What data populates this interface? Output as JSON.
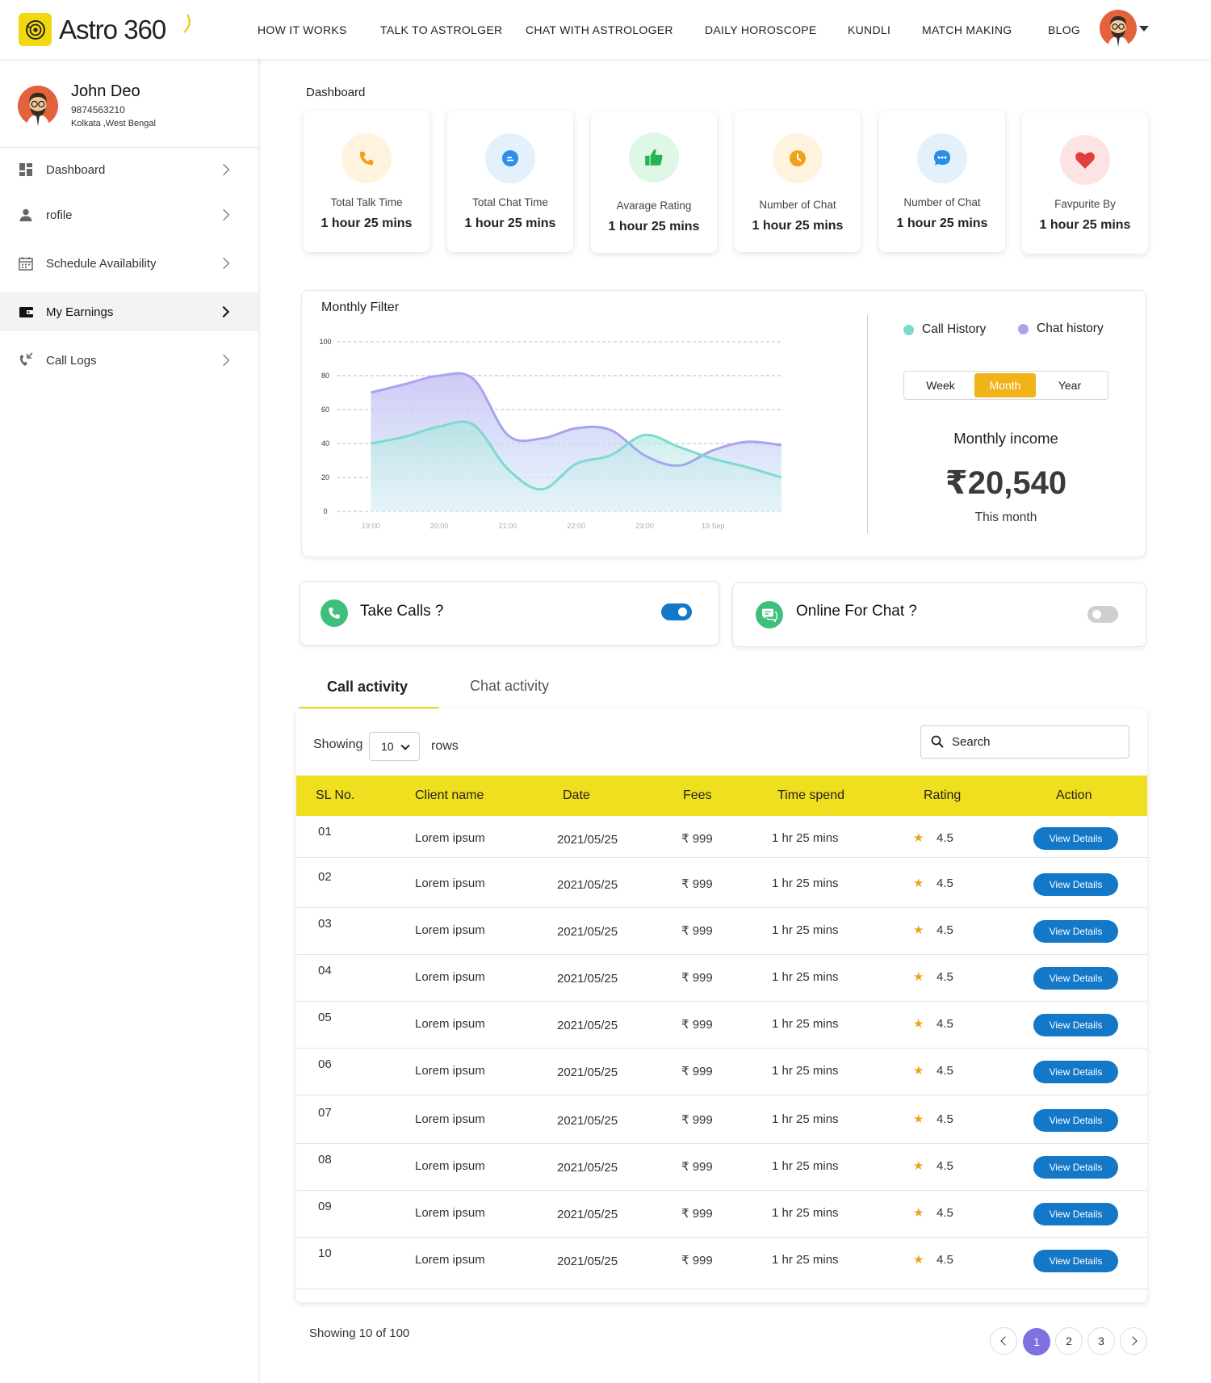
{
  "brand": {
    "name": "Astro 360",
    "accent": "#f2d80f"
  },
  "nav": [
    "HOW IT WORKS",
    "TALK TO ASTROLGER",
    "CHAT WITH ASTROLOGER",
    "DAILY HOROSCOPE",
    "KUNDLI",
    "MATCH MAKING",
    "BLOG"
  ],
  "profile": {
    "name": "John Deo",
    "phone": "9874563210",
    "location": "Kolkata ,West Bengal"
  },
  "sidebar": {
    "items": [
      {
        "label": "Dashboard",
        "icon": "dashboard-icon"
      },
      {
        "label": "rofile",
        "icon": "user-icon"
      },
      {
        "label": "Schedule Availability",
        "icon": "calendar-icon"
      },
      {
        "label": "My Earnings",
        "icon": "wallet-icon",
        "active": true
      },
      {
        "label": "Call Logs",
        "icon": "call-logs-icon"
      }
    ]
  },
  "dashboard": {
    "title": "Dashboard",
    "stats": [
      {
        "label": "Total Talk Time",
        "value": "1 hour 25 mins",
        "icon": "phone-icon",
        "color": "#f0a21a"
      },
      {
        "label": "Total Chat Time",
        "value": "1 hour 25 mins",
        "icon": "chat-icon",
        "color": "#2b8ee8"
      },
      {
        "label": "Avarage Rating",
        "value": "1 hour 25 mins",
        "icon": "thumbs-up-icon",
        "color": "#27b34d"
      },
      {
        "label": "Number of Chat",
        "value": "1 hour 25 mins",
        "icon": "clock-icon",
        "color": "#f0a21a"
      },
      {
        "label": "Number of Chat",
        "value": "1 hour 25 mins",
        "icon": "chat-dots-icon",
        "color": "#2b8ee8"
      },
      {
        "label": "Favpurite By",
        "value": "1 hour 25 mins",
        "icon": "heart-icon",
        "color": "#e43d3d"
      }
    ]
  },
  "monthly": {
    "title": "Monthly Filter",
    "periods": [
      "Week",
      "Month",
      "Year"
    ],
    "active_period": "Month",
    "income_title": "Monthly income",
    "income_value": "₹20,540",
    "income_sub": "This month"
  },
  "chart_data": {
    "type": "area",
    "title": "Monthly Filter",
    "x_ticks": [
      "19:00",
      "20:00",
      "21:00",
      "22:00",
      "23:00",
      "19 Sep"
    ],
    "y_ticks": [
      0,
      20,
      40,
      60,
      80,
      100
    ],
    "ylim": [
      0,
      100
    ],
    "grid": true,
    "legend_position": "right",
    "x_positions": [
      0,
      0.5,
      1,
      1.5,
      2,
      2.5,
      3,
      3.5,
      4,
      4.5,
      5,
      5.5,
      6
    ],
    "xlim": [
      -0.5,
      6
    ],
    "series": [
      {
        "name": "Call History",
        "color": "#7ed9cf",
        "values": [
          40,
          44,
          50,
          51,
          25,
          13,
          28,
          33,
          45,
          38,
          31,
          26,
          20
        ]
      },
      {
        "name": "Chat history",
        "color": "#a9a4ee",
        "values": [
          70,
          75,
          80,
          78,
          45,
          43,
          49,
          48,
          33,
          27,
          36,
          41,
          39
        ]
      }
    ]
  },
  "toggles": {
    "calls": {
      "label": "Take Calls ?",
      "on": true
    },
    "chat": {
      "label": "Online For Chat ?",
      "on": false
    }
  },
  "tabs": [
    {
      "label": "Call activity",
      "active": true
    },
    {
      "label": "Chat activity",
      "active": false
    }
  ],
  "table": {
    "showing_label": "Showing",
    "rows_value": "10",
    "rows_label": "rows",
    "search_placeholder": "Search",
    "headers": [
      "SL No.",
      "Client name",
      "Date",
      "Fees",
      "Time spend",
      "Rating",
      "Action"
    ],
    "action_label": "View Details",
    "rows": [
      [
        "01",
        "Lorem ipsum",
        "2021/05/25",
        "₹ 999",
        "1 hr 25 mins",
        "4.5"
      ],
      [
        "02",
        "Lorem ipsum",
        "2021/05/25",
        "₹ 999",
        "1 hr 25 mins",
        "4.5"
      ],
      [
        "03",
        "Lorem ipsum",
        "2021/05/25",
        "₹ 999",
        "1 hr 25 mins",
        "4.5"
      ],
      [
        "04",
        "Lorem ipsum",
        "2021/05/25",
        "₹ 999",
        "1 hr 25 mins",
        "4.5"
      ],
      [
        "05",
        "Lorem ipsum",
        "2021/05/25",
        "₹ 999",
        "1 hr 25 mins",
        "4.5"
      ],
      [
        "06",
        "Lorem ipsum",
        "2021/05/25",
        "₹ 999",
        "1 hr 25 mins",
        "4.5"
      ],
      [
        "07",
        "Lorem ipsum",
        "2021/05/25",
        "₹ 999",
        "1 hr 25 mins",
        "4.5"
      ],
      [
        "08",
        "Lorem ipsum",
        "2021/05/25",
        "₹ 999",
        "1 hr 25 mins",
        "4.5"
      ],
      [
        "09",
        "Lorem ipsum",
        "2021/05/25",
        "₹ 999",
        "1 hr 25 mins",
        "4.5"
      ],
      [
        "10",
        "Lorem ipsum",
        "2021/05/25",
        "₹ 999",
        "1 hr 25 mins",
        "4.5"
      ]
    ]
  },
  "pagination": {
    "showing": "Showing 10 of 100",
    "pages": [
      "1",
      "2",
      "3"
    ],
    "current": "1"
  }
}
